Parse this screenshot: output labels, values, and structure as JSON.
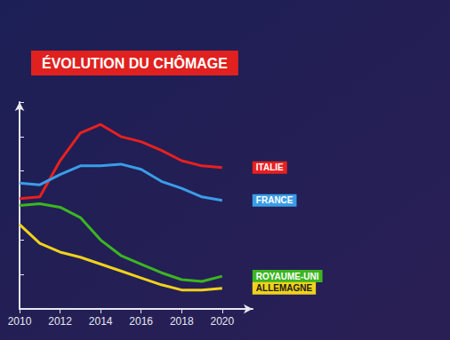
{
  "chart_data": {
    "type": "line",
    "title": "ÉVOLUTION DU CHÔMAGE",
    "x": [
      2010,
      2011,
      2012,
      2013,
      2014,
      2015,
      2016,
      2017,
      2018,
      2019,
      2020
    ],
    "series": [
      {
        "name": "ITALIE",
        "color": "#e8201f",
        "values": [
          8.4,
          8.5,
          10.6,
          12.2,
          12.7,
          12.0,
          11.7,
          11.2,
          10.6,
          10.3,
          10.2
        ]
      },
      {
        "name": "FRANCE",
        "color": "#3a9de8",
        "values": [
          9.3,
          9.2,
          9.8,
          10.3,
          10.3,
          10.4,
          10.1,
          9.4,
          9.0,
          8.5,
          8.3
        ]
      },
      {
        "name": "ROYAUME-UNI",
        "color": "#3cb521",
        "values": [
          8.0,
          8.1,
          7.9,
          7.3,
          6.0,
          5.1,
          4.6,
          4.1,
          3.7,
          3.6,
          3.9
        ]
      },
      {
        "name": "ALLEMAGNE",
        "color": "#f0d21c",
        "values": [
          6.9,
          5.8,
          5.3,
          5.0,
          4.6,
          4.2,
          3.8,
          3.4,
          3.1,
          3.1,
          3.2
        ]
      }
    ],
    "xlim": [
      2010,
      2021.5
    ],
    "xticks": [
      2010,
      2012,
      2014,
      2016,
      2018,
      2020
    ],
    "ylim": [
      2,
      14
    ],
    "yticks": [
      2,
      4,
      6,
      8,
      10,
      12,
      14
    ],
    "grid": false,
    "tick_labels": "x"
  }
}
